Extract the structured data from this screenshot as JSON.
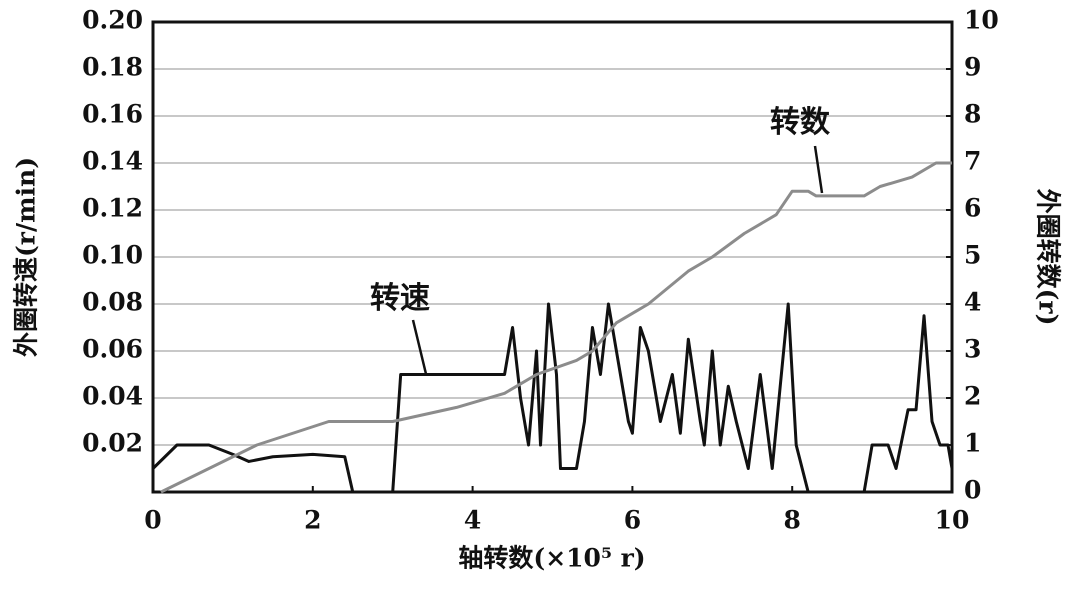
{
  "chart_data": {
    "type": "line",
    "xlabel": "轴转数(×10⁵ r)",
    "ylabel": "外圈转速(r/min)",
    "y2label": "外圈转数(r)",
    "xlim": [
      0,
      10
    ],
    "xticks": [
      0,
      2,
      4,
      6,
      8,
      10
    ],
    "ylim": [
      0,
      0.2
    ],
    "yticks": [
      0.02,
      0.04,
      0.06,
      0.08,
      {
        "value": 0.1,
        "label": "0.10"
      },
      0.12,
      0.14,
      0.16,
      0.18,
      {
        "value": 0.2,
        "label": "0.20"
      }
    ],
    "y2lim": [
      0,
      10
    ],
    "y2ticks": [
      0,
      1,
      2,
      3,
      4,
      5,
      6,
      7,
      8,
      9,
      10
    ],
    "grid": true,
    "series": [
      {
        "name": "转速",
        "color": "#111111",
        "axis": "y",
        "x": [
          0,
          0.3,
          0.7,
          1.0,
          1.2,
          1.5,
          2.0,
          2.4,
          2.5,
          3.0,
          3.1,
          4.4,
          4.5,
          4.6,
          4.7,
          4.8,
          4.85,
          4.95,
          5.05,
          5.1,
          5.3,
          5.4,
          5.5,
          5.6,
          5.7,
          5.8,
          5.95,
          6.0,
          6.1,
          6.2,
          6.35,
          6.5,
          6.6,
          6.7,
          6.85,
          6.9,
          7.0,
          7.1,
          7.2,
          7.3,
          7.45,
          7.6,
          7.75,
          7.95,
          8.05,
          8.2,
          8.9,
          9.0,
          9.2,
          9.3,
          9.45,
          9.55,
          9.65,
          9.75,
          9.85,
          9.95,
          10
        ],
        "values": [
          0.01,
          0.02,
          0.02,
          0.016,
          0.013,
          0.015,
          0.016,
          0.015,
          0,
          0,
          0.05,
          0.05,
          0.07,
          0.04,
          0.02,
          0.06,
          0.02,
          0.08,
          0.05,
          0.01,
          0.01,
          0.03,
          0.07,
          0.05,
          0.08,
          0.06,
          0.03,
          0.025,
          0.07,
          0.06,
          0.03,
          0.05,
          0.025,
          0.065,
          0.03,
          0.02,
          0.06,
          0.02,
          0.045,
          0.03,
          0.01,
          0.05,
          0.01,
          0.08,
          0.02,
          0,
          0,
          0.02,
          0.02,
          0.01,
          0.035,
          0.035,
          0.075,
          0.03,
          0.02,
          0.02,
          0.01
        ]
      },
      {
        "name": "转数",
        "color": "#8c8c8c",
        "axis": "y2",
        "x": [
          0.1,
          1.3,
          2.2,
          3.0,
          3.8,
          4.4,
          4.8,
          5.3,
          5.5,
          5.8,
          6.2,
          6.7,
          7.0,
          7.4,
          7.8,
          8.0,
          8.2,
          8.3,
          8.9,
          9.1,
          9.5,
          9.8,
          10
        ],
        "values": [
          0,
          1,
          1.5,
          1.5,
          1.8,
          2.1,
          2.5,
          2.8,
          3.0,
          3.6,
          4.0,
          4.7,
          5.0,
          5.5,
          5.9,
          6.4,
          6.4,
          6.3,
          6.3,
          6.5,
          6.7,
          7.0,
          7.0
        ]
      }
    ]
  }
}
